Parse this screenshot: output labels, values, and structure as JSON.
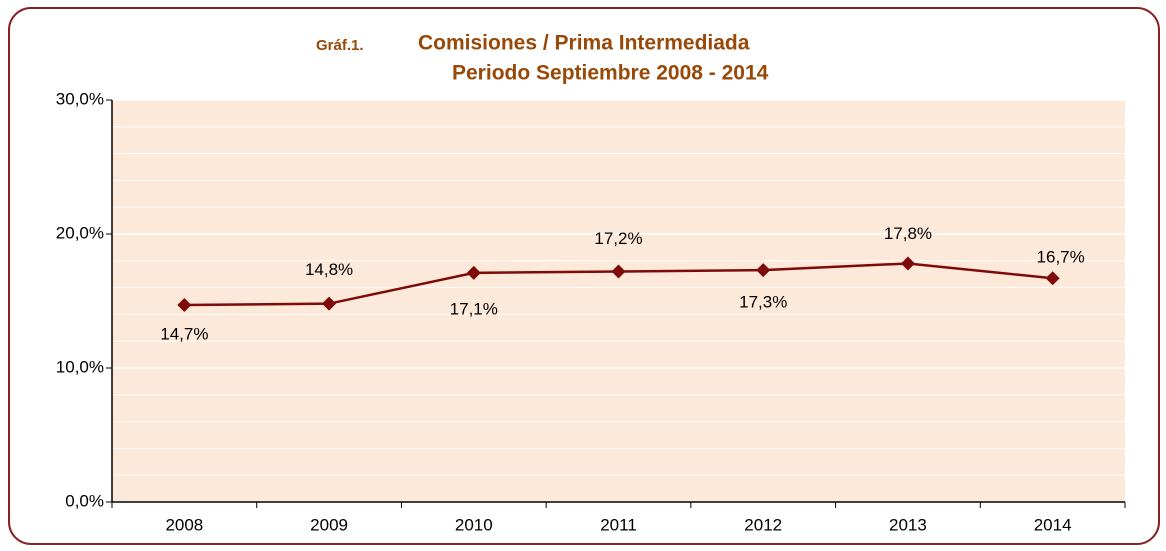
{
  "chart_data": {
    "type": "line",
    "label": "Gráf.1.",
    "title": "Comisiones / Prima Intermediada",
    "subtitle": "Periodo Septiembre 2008 - 2014",
    "categories": [
      "2008",
      "2009",
      "2010",
      "2011",
      "2012",
      "2013",
      "2014"
    ],
    "series": [
      {
        "name": "Comisiones / Prima Intermediada",
        "color": "#7f0a0a",
        "values": [
          14.7,
          14.8,
          17.1,
          17.2,
          17.3,
          17.8,
          16.7
        ],
        "value_labels": [
          "14,7%",
          "14,8%",
          "17,1%",
          "17,2%",
          "17,3%",
          "17,8%",
          "16,7%"
        ]
      }
    ],
    "ylim": [
      0,
      30
    ],
    "yticks": [
      {
        "value": 0,
        "label": "0,0%"
      },
      {
        "value": 10,
        "label": "10,0%"
      },
      {
        "value": 20,
        "label": "20,0%"
      },
      {
        "value": 30,
        "label": "30,0%"
      }
    ],
    "minor_yticks": [
      2,
      4,
      6,
      8,
      12,
      14,
      16,
      18,
      22,
      24,
      26,
      28
    ],
    "grid": true,
    "plot_background": "#fde9d9"
  }
}
